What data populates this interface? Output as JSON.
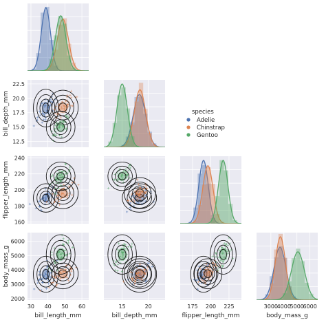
{
  "chart_data": {
    "type": "pairplot",
    "variables": [
      "bill_length_mm",
      "bill_depth_mm",
      "flipper_length_mm",
      "body_mass_g"
    ],
    "corner": true,
    "diag_kind": "hist+kde",
    "offdiag_kind": "scatter+kde-contours",
    "grid": true,
    "axes": {
      "bill_length_mm": {
        "label": "bill_length_mm",
        "range": [
          28,
          64
        ],
        "ticks": [
          30,
          40,
          50,
          60
        ]
      },
      "bill_depth_mm": {
        "label": "bill_depth_mm",
        "range": [
          11.5,
          23.2
        ],
        "ticks": [
          12.5,
          15.0,
          17.5,
          20.0,
          22.5
        ],
        "tick_labels": [
          "12.5",
          "15.0",
          "17.5",
          "20.0",
          "22.5"
        ],
        "x_ticks": [
          15,
          20
        ]
      },
      "flipper_length_mm": {
        "label": "flipper_length_mm",
        "range": [
          158,
          242
        ],
        "ticks": [
          160,
          180,
          200,
          220,
          240
        ],
        "x_ticks": [
          175,
          200,
          225
        ]
      },
      "body_mass_g": {
        "label": "body_mass_g",
        "range": [
          1900,
          6600
        ],
        "ticks": [
          2000,
          3000,
          4000,
          5000,
          6000,
          7000
        ],
        "x_ticks": [
          3000,
          4000,
          5000,
          6000
        ]
      }
    },
    "legend": {
      "title": "species",
      "placement": "center-right",
      "entries": [
        {
          "name": "Adelie",
          "color": "#4c72b0"
        },
        {
          "name": "Chinstrap",
          "color": "#dd8452"
        },
        {
          "name": "Gentoo",
          "color": "#55a868"
        }
      ]
    },
    "series": [
      {
        "name": "Adelie",
        "color": "#4c72b0",
        "mean": {
          "bill_length_mm": 38.8,
          "bill_depth_mm": 18.3,
          "flipper_length_mm": 190,
          "body_mass_g": 3700
        },
        "sd": {
          "bill_length_mm": 2.7,
          "bill_depth_mm": 1.2,
          "flipper_length_mm": 6.5,
          "body_mass_g": 460
        }
      },
      {
        "name": "Chinstrap",
        "color": "#dd8452",
        "mean": {
          "bill_length_mm": 48.8,
          "bill_depth_mm": 18.4,
          "flipper_length_mm": 196,
          "body_mass_g": 3733
        },
        "sd": {
          "bill_length_mm": 3.3,
          "bill_depth_mm": 1.1,
          "flipper_length_mm": 7.1,
          "body_mass_g": 384
        }
      },
      {
        "name": "Gentoo",
        "color": "#55a868",
        "mean": {
          "bill_length_mm": 47.5,
          "bill_depth_mm": 15.0,
          "flipper_length_mm": 217,
          "body_mass_g": 5076
        },
        "sd": {
          "bill_length_mm": 3.1,
          "bill_depth_mm": 1.0,
          "flipper_length_mm": 6.5,
          "body_mass_g": 504
        }
      }
    ]
  },
  "colors": {
    "panel_bg": "#eaeaf2",
    "grid": "#ffffff",
    "contour": "#1a1a1a",
    "text": "#262626"
  }
}
